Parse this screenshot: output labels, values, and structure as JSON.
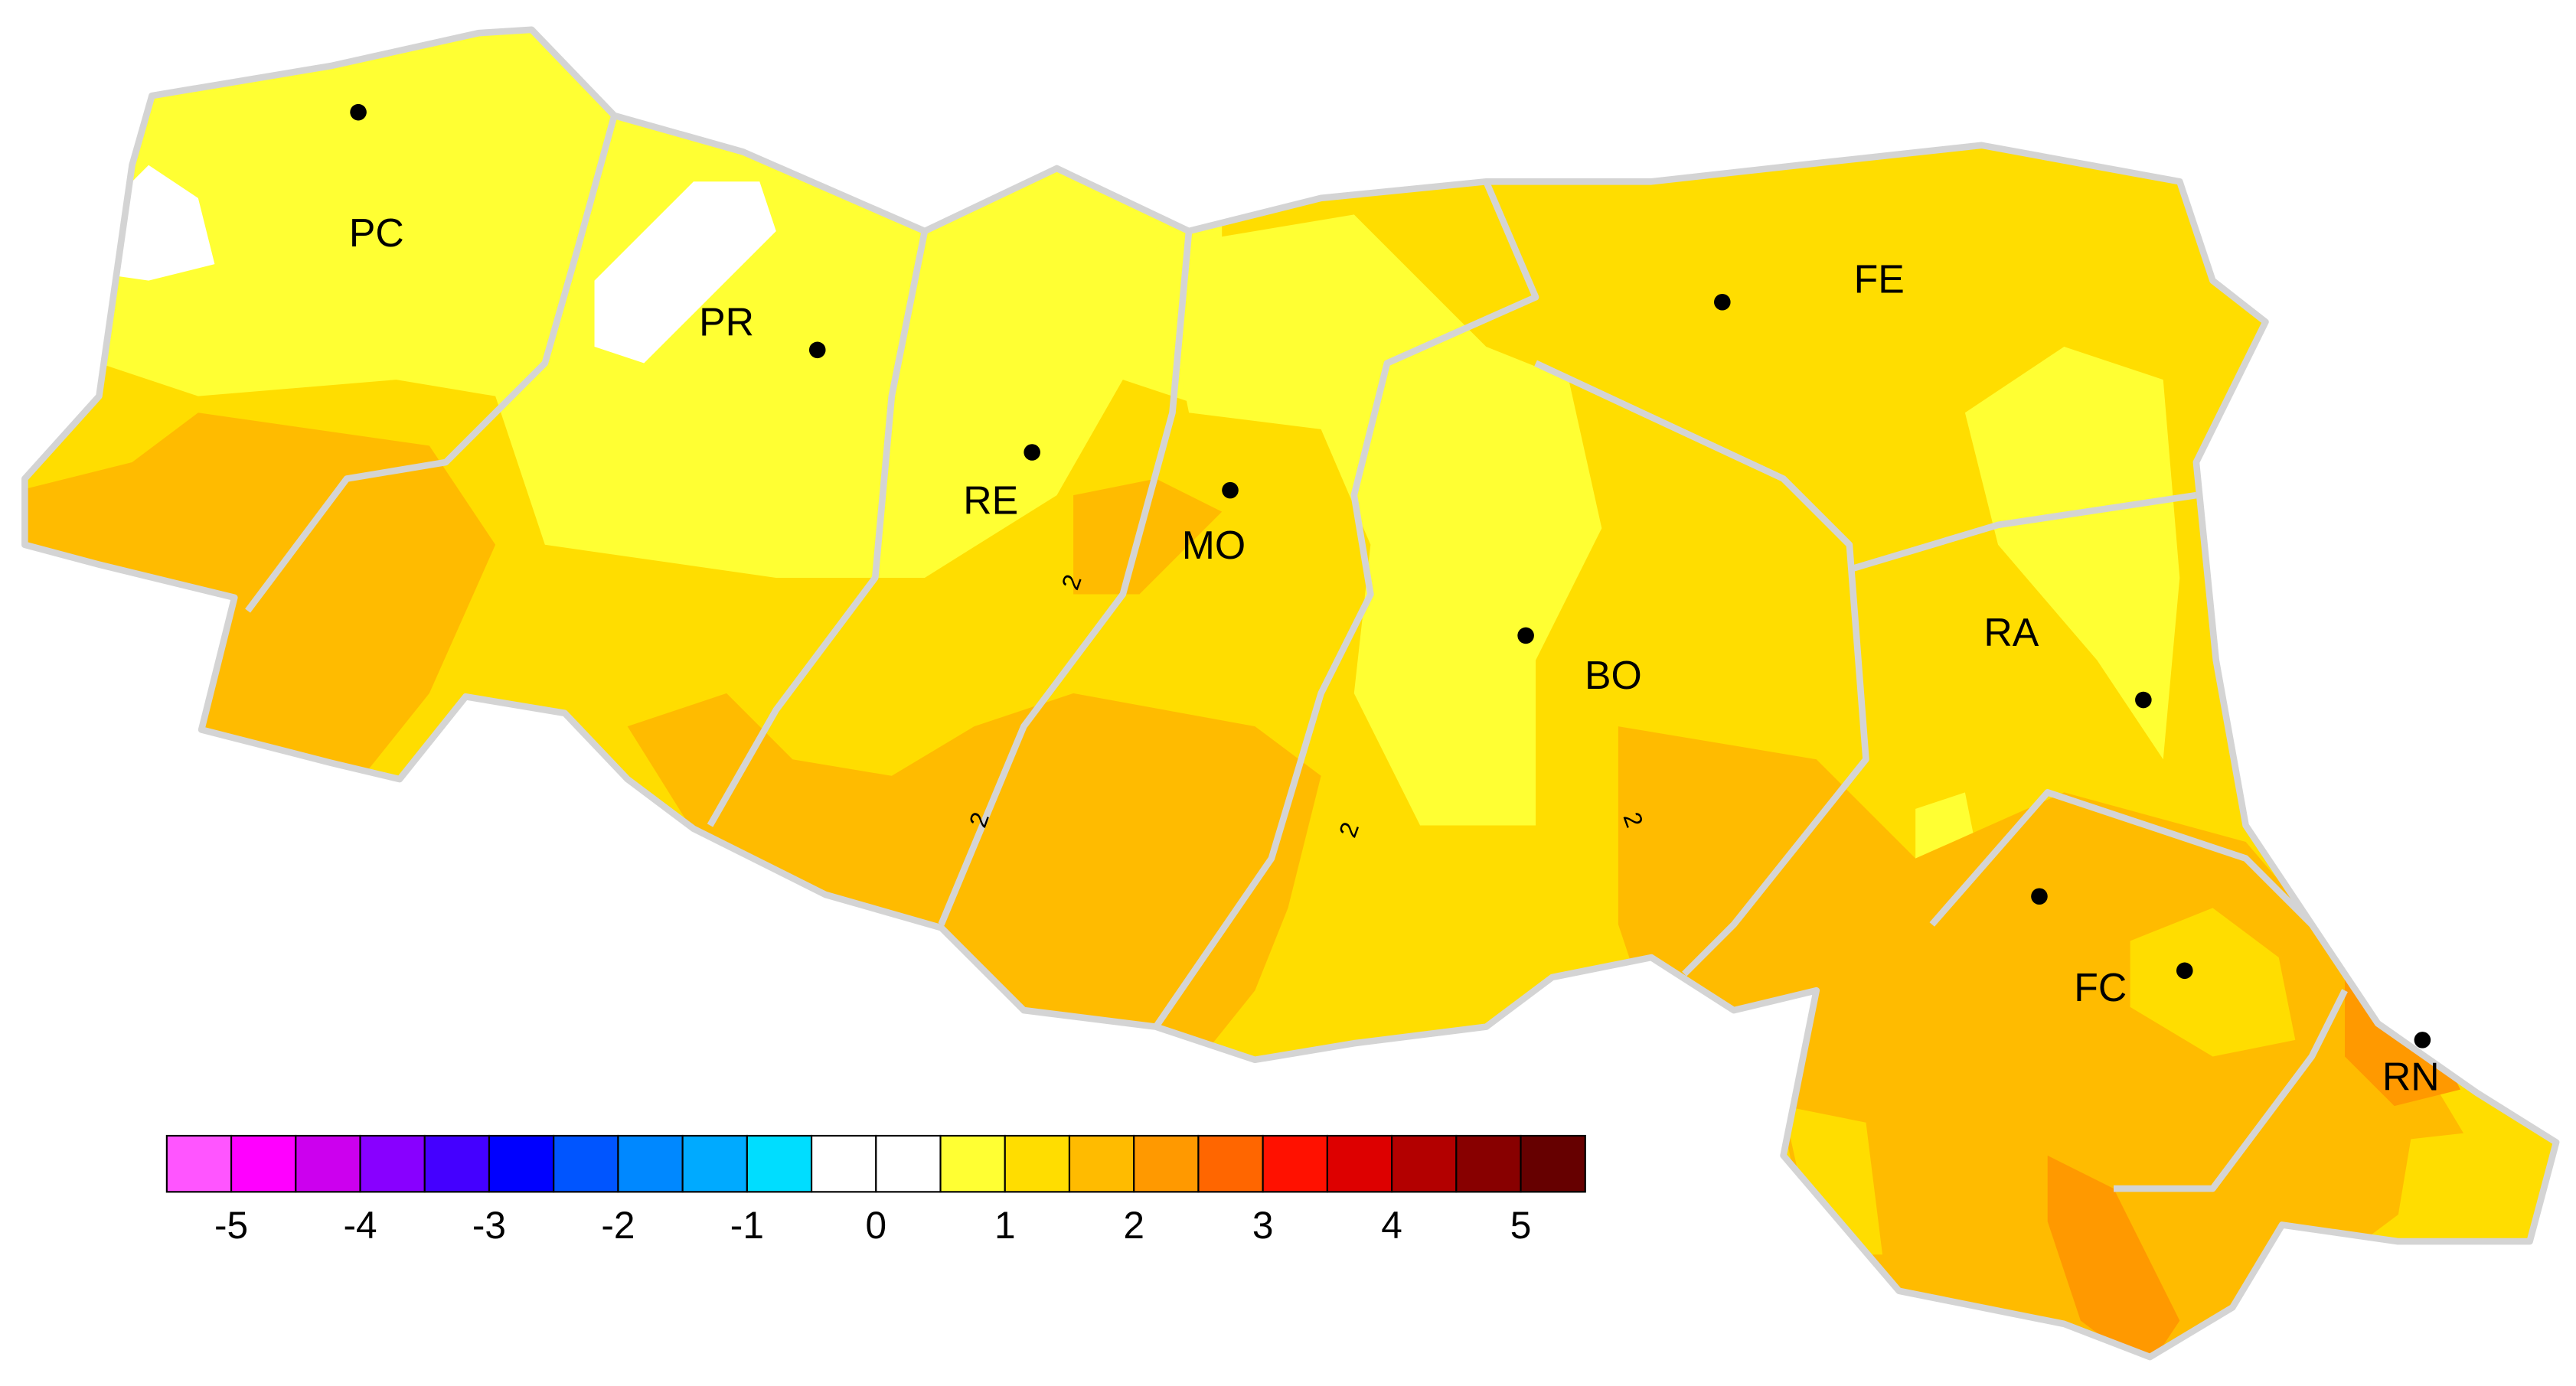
{
  "map": {
    "cities": [
      "PC",
      "PR",
      "RE",
      "MO",
      "BO",
      "FE",
      "RA",
      "FC",
      "RN"
    ],
    "contour_labels": [
      "2",
      "2",
      "2",
      "2"
    ],
    "legend": {
      "colors": [
        "#ff55ff",
        "#ff00ff",
        "#cc00ee",
        "#8800ff",
        "#4400ff",
        "#0000ff",
        "#0055ff",
        "#0088ff",
        "#00aaff",
        "#00ddff",
        "#ffffff",
        "#ffffff",
        "#ffff33",
        "#ffdd00",
        "#ffbb00",
        "#ff9900",
        "#ff6600",
        "#ff1100",
        "#dd0000",
        "#b30000",
        "#880000",
        "#660000"
      ],
      "range": [
        -5.5,
        5.5
      ],
      "ticks": [
        -5,
        -4,
        -3,
        -2,
        -1,
        0,
        1,
        2,
        3,
        4,
        5
      ]
    }
  }
}
